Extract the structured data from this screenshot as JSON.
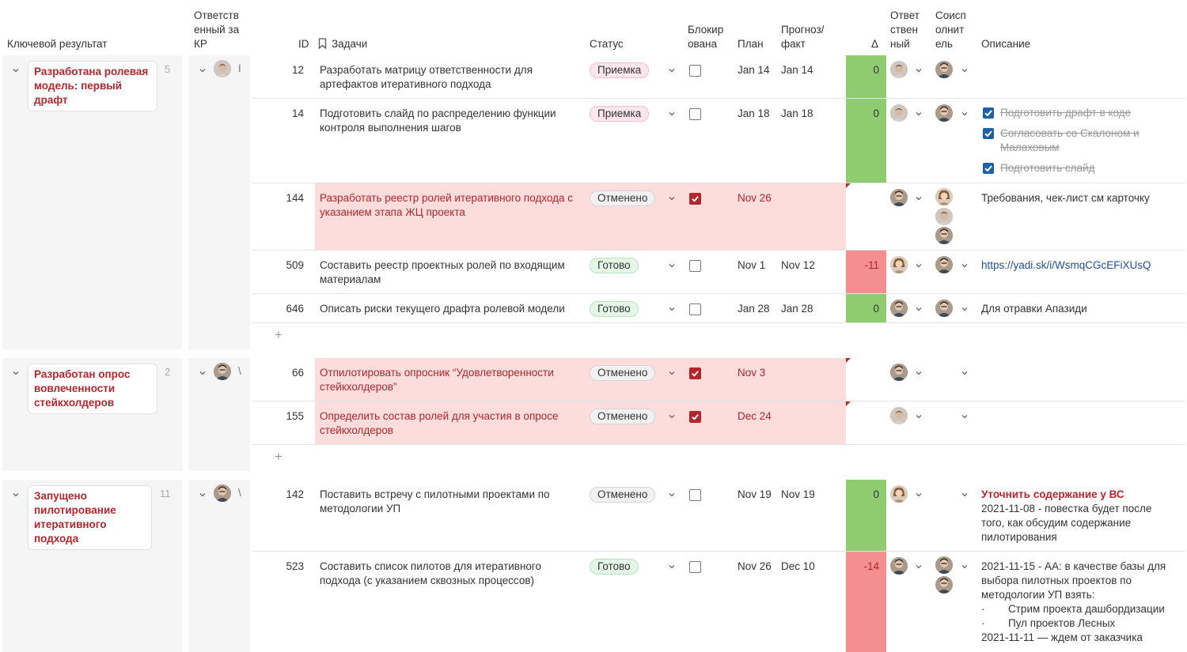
{
  "headers": {
    "kr": "Ключевой результат",
    "owner_kr": [
      "Ответств",
      "енный за",
      "КР"
    ],
    "id": "ID",
    "tasks": "Задачи",
    "status": "Статус",
    "blocked": [
      "Блокир",
      "ована"
    ],
    "plan": "План",
    "forecast": [
      "Прогноз/",
      "факт"
    ],
    "delta": "Δ",
    "resp": [
      "Ответ",
      "ствен",
      "ный"
    ],
    "coexec": [
      "Соисп",
      "олнит",
      "ель"
    ],
    "desc": "Описание"
  },
  "groups": [
    {
      "title": [
        "Разработана ролевая",
        "модель: первый",
        "драфт"
      ],
      "count": "5",
      "owner_initial": "І",
      "rows": [
        {
          "id": "12",
          "task": [
            "Разработать матрицу ответственности для",
            "артефактов итеративного подхода"
          ],
          "status": "Приемка",
          "plan": "Jan 14",
          "fact": "Jan 14",
          "delta": "0"
        },
        {
          "id": "14",
          "task": [
            "Подготовить слайд по распределению функции",
            "контроля выполнения шагов"
          ],
          "status": "Приемка",
          "plan": "Jan 18",
          "fact": "Jan 18",
          "delta": "0",
          "checklist": [
            "Подготовить драфт в коде",
            "Согласовать со Скалоном и",
            "Малаховым",
            "Подготовить слайд"
          ]
        },
        {
          "id": "144",
          "task": [
            "Разработать реестр ролей итеративного подхода с",
            "указанием этапа ЖЦ проекта"
          ],
          "status": "Отменено",
          "plan": "Nov 26",
          "fact": "",
          "delta": "",
          "desc": "Требования, чек-лист см карточку"
        },
        {
          "id": "509",
          "task": [
            "Составить реестр проектных ролей по входящим",
            "материалам"
          ],
          "status": "Готово",
          "plan": "Nov 1",
          "fact": "Nov 12",
          "delta": "-11",
          "desc": "https://yadi.sk/i/WsmqCGcEFiXUsQ"
        },
        {
          "id": "646",
          "task": [
            "Описать риски текущего драфта ролевой модели"
          ],
          "status": "Готово",
          "plan": "Jan 28",
          "fact": "Jan 28",
          "delta": "0",
          "desc": "Для отравки Апазиди"
        }
      ]
    },
    {
      "title": [
        "Разработан опрос",
        "вовлеченности",
        "стейкхолдеров"
      ],
      "count": "2",
      "owner_initial": "\\",
      "rows": [
        {
          "id": "66",
          "task": [
            "Отпилотировать опросник “Удовлетворенности",
            "стейкхолдеров”"
          ],
          "status": "Отменено",
          "plan": "Nov 3"
        },
        {
          "id": "155",
          "task": [
            "Определить состав ролей для участия в опросе",
            "стейкхолдеров"
          ],
          "status": "Отменено",
          "plan": "Dec 24"
        }
      ]
    },
    {
      "title": [
        "Запущено",
        "пилотирование",
        "итеративного",
        "подхода"
      ],
      "count": "11",
      "owner_initial": "\\",
      "rows": [
        {
          "id": "142",
          "task": [
            "Поставить встречу с пилотными проектами по",
            "методологии УП"
          ],
          "status": "Отменено",
          "plan": "Nov 19",
          "fact": "Nov 19",
          "delta": "0",
          "desc_title": "Уточнить содержание у ВС",
          "desc": [
            "2021-11-08 - повестка будет после",
            "того, как обсудим содержание",
            "пилотирования"
          ]
        },
        {
          "id": "523",
          "task": [
            "Составить список пилотов для итеративного",
            "подхода (с указанием сквозных процессов)"
          ],
          "status": "Готово",
          "plan": "Nov 26",
          "fact": "Dec 10",
          "delta": "-14",
          "desc": [
            "2021-11-15 - АА: в качестве базы для",
            "выбора пилотных проектов по",
            "методологии УП взять:",
            "·",
            "Стрим проекта дашбордизации",
            "·",
            "Пул проектов Лесных",
            "2021-11-11 — ждем от заказчика"
          ]
        }
      ]
    }
  ],
  "add_symbol": "+",
  "colors": {
    "accent": "#b3262c",
    "green": "#8ecb71",
    "red": "#f58f8f",
    "pink_row": "#fddcdc"
  },
  "icons": [
    "chevron-down-icon",
    "bookmark-icon",
    "check-icon",
    "avatar-icon",
    "plus-icon"
  ]
}
